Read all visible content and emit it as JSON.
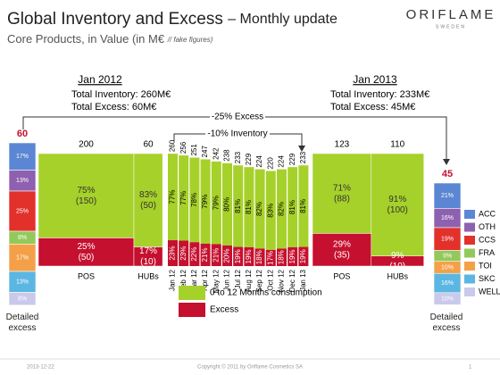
{
  "header": {
    "title": "Global Inventory and Excess",
    "title_suffix": "– Monthly update",
    "subtitle": "Core Products, in Value (in M€",
    "subtitle_note": "// fake figures)",
    "logo": "ORIFLAME",
    "logo_sub": "SWEDEN"
  },
  "arrows": {
    "excess": "-25% Excess",
    "inventory": "-10% Inventory"
  },
  "consumption_color": "#a6d12a",
  "excess_color": "#c5102f",
  "legend": {
    "consumption": "0 to 12 Months consumption",
    "excess": "Excess"
  },
  "detail_legend": {
    "names": [
      "ACC",
      "OTH",
      "CCS",
      "FRA",
      "TOI",
      "SKC",
      "WELL"
    ],
    "colors": [
      "#5b86d3",
      "#8d61b0",
      "#e2312b",
      "#93c95a",
      "#f4a048",
      "#5bb6e2",
      "#c9c9ec"
    ]
  },
  "detail_label": "Detailed excess",
  "jan2012": {
    "period": "Jan 2012",
    "total_inventory": "Total Inventory: 260M€",
    "total_excess": "Total Excess: 60M€",
    "groups": [
      {
        "name": "POS",
        "total": 200,
        "parts": [
          {
            "pct": 75,
            "pct_label": "75%",
            "value": 150,
            "value_label": "(150)"
          },
          {
            "pct": 25,
            "pct_label": "25%",
            "value": 50,
            "value_label": "(50)"
          }
        ]
      },
      {
        "name": "HUBs",
        "total": 60,
        "parts": [
          {
            "pct": 83,
            "pct_label": "83%",
            "value": 50,
            "value_label": "(50)"
          },
          {
            "pct": 17,
            "pct_label": "17%",
            "value": 10,
            "value_label": "(10)"
          }
        ]
      }
    ],
    "detail": {
      "total": 60,
      "values": [
        17,
        13,
        25,
        8,
        17,
        13,
        8
      ],
      "value_labels": [
        "17%",
        "13%",
        "25%",
        "8%",
        "17%",
        "13%",
        "8%"
      ]
    }
  },
  "jan2013": {
    "period": "Jan 2013",
    "total_inventory": "Total Inventory: 233M€",
    "total_excess": "Total Excess: 45M€",
    "groups": [
      {
        "name": "POS",
        "total": 123,
        "parts": [
          {
            "pct": 71,
            "pct_label": "71%",
            "value": 88,
            "value_label": "(88)"
          },
          {
            "pct": 29,
            "pct_label": "29%",
            "value": 35,
            "value_label": "(35)"
          }
        ]
      },
      {
        "name": "HUBs",
        "total": 110,
        "parts": [
          {
            "pct": 91,
            "pct_label": "91%",
            "value": 100,
            "value_label": "(100)"
          },
          {
            "pct": 9,
            "pct_label": "9%",
            "value": 10,
            "value_label": "(10)"
          }
        ]
      }
    ],
    "detail": {
      "total": 45,
      "values": [
        21,
        16,
        19,
        9,
        10,
        16,
        10
      ],
      "value_labels": [
        "21%",
        "16%",
        "19%",
        "9%",
        "10%",
        "16%",
        "10%"
      ]
    }
  },
  "months": {
    "categories": [
      "Jan 12",
      "Feb 12",
      "Mar 12",
      "Apr 12",
      "May 12",
      "Jun 12",
      "Jul 12",
      "Aug 12",
      "Sep 12",
      "Oct 12",
      "Nov 12",
      "Dec 12",
      "Jan 13"
    ],
    "totals": [
      260,
      256,
      251,
      247,
      242,
      238,
      233,
      229,
      224,
      220,
      224,
      229,
      233
    ],
    "consumption": [
      77,
      77,
      78,
      79,
      79,
      80,
      81,
      81,
      82,
      83,
      82,
      81,
      81
    ],
    "consumption_labels": [
      "77%",
      "77%",
      "78%",
      "79%",
      "79%",
      "80%",
      "81%",
      "81%",
      "82%",
      "83%",
      "82%",
      "81%",
      "81%"
    ],
    "excess": [
      23,
      23,
      22,
      21,
      21,
      20,
      19,
      19,
      18,
      17,
      18,
      19,
      19
    ],
    "excess_labels": [
      "23%",
      "23%",
      "22%",
      "21%",
      "21%",
      "20%",
      "19%",
      "19%",
      "18%",
      "17%",
      "18%",
      "19%",
      "19%"
    ]
  },
  "footer": {
    "date": "2013-12-22",
    "copyright": "Copyright © 2011 by Oriflame Cosmetics SA",
    "page": "1"
  }
}
